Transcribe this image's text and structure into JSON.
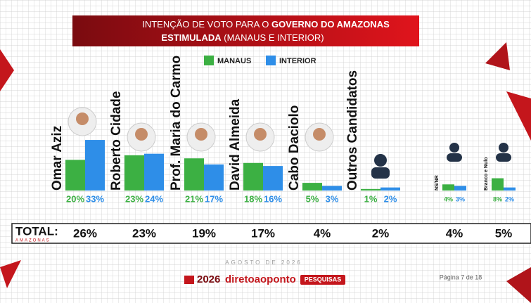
{
  "chart_data": {
    "type": "bar",
    "title_parts": [
      "INTENÇÃO DE VOTO PARA O",
      "GOVERNO DO AMAZONAS",
      "ESTIMULADA",
      "(MANAUS E INTERIOR)"
    ],
    "categories": [
      "Omar Aziz",
      "Roberto Cidade",
      "Prof. Maria do Carmo",
      "David Almeida",
      "Cabo Daciolo",
      "Outros Candidatos",
      "NS/NR",
      "Branco e Nulo"
    ],
    "series": [
      {
        "name": "MANAUS",
        "color": "#3cb043",
        "values": [
          20,
          23,
          21,
          18,
          5,
          1,
          4,
          8
        ],
        "value_labels": [
          "20%",
          "23%",
          "21%",
          "18%",
          "5%",
          "1%",
          "4%",
          "8%"
        ]
      },
      {
        "name": "INTERIOR",
        "color": "#2e8ee8",
        "values": [
          33,
          24,
          17,
          16,
          3,
          2,
          3,
          2
        ],
        "value_labels": [
          "33%",
          "24%",
          "17%",
          "16%",
          "3%",
          "2%",
          "3%",
          "2%"
        ]
      }
    ],
    "totals": {
      "label": "TOTAL:",
      "sublabel": "AMAZONAS",
      "values": [
        26,
        23,
        19,
        17,
        4,
        2,
        4,
        5
      ],
      "value_labels": [
        "26%",
        "23%",
        "19%",
        "17%",
        "4%",
        "2%",
        "4%",
        "5%"
      ]
    },
    "footer": {
      "date": "AGOSTO DE 2026",
      "logo_year": "2026",
      "logo_name": "diretoaoponto",
      "logo_tag": "PESQUISAS",
      "page": "Página 7 de 18"
    }
  }
}
